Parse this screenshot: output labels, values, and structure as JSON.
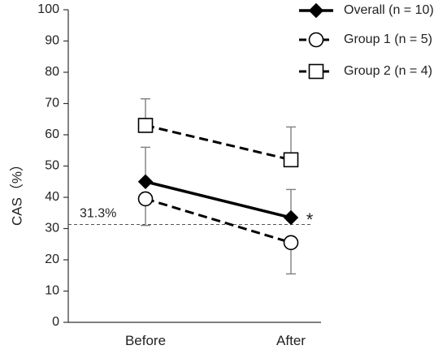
{
  "chart_data": {
    "type": "line",
    "title": "",
    "xlabel": "",
    "ylabel": "CAS（%）",
    "categories": [
      "Before",
      "After"
    ],
    "ylim": [
      0,
      100
    ],
    "yticks": [
      0,
      10,
      20,
      30,
      40,
      50,
      60,
      70,
      80,
      90,
      100
    ],
    "grid": false,
    "legend": "top-right",
    "series": [
      {
        "name": "Overall (n = 10)",
        "values": [
          45,
          33.5
        ],
        "error_upper": [
          56,
          42.5
        ],
        "line_style": "solid",
        "marker": "filled-diamond"
      },
      {
        "name": "Group 1 (n = 5)",
        "values": [
          39.5,
          25.5
        ],
        "error_lower": [
          31,
          15.5
        ],
        "line_style": "dashed",
        "marker": "open-circle"
      },
      {
        "name": "Group 2 (n = 4)",
        "values": [
          63,
          52
        ],
        "error_upper": [
          71.5,
          62.5
        ],
        "line_style": "dashed",
        "marker": "open-square"
      }
    ],
    "reference_line": {
      "value": 31.3,
      "label": "31.3%",
      "line_style": "dashed"
    },
    "annotations": [
      {
        "text": "*",
        "category": "After"
      }
    ],
    "colors": {
      "line": "#000000",
      "error_bar": "#7f7f7f",
      "reference": "#555555"
    }
  }
}
